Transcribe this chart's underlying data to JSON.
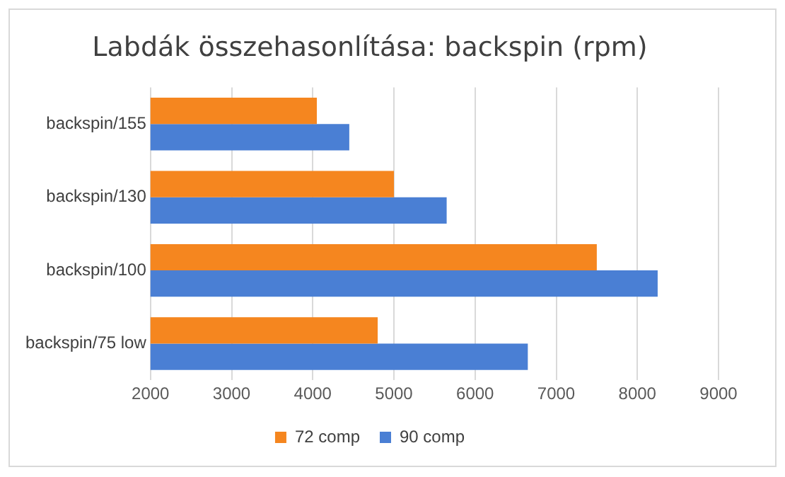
{
  "chart_data": {
    "type": "bar",
    "orientation": "horizontal",
    "title": "Labdák összehasonlítása: backspin (rpm)",
    "categories": [
      "backspin/155",
      "backspin/130",
      "backspin/100",
      "backspin/75 low"
    ],
    "series": [
      {
        "name": "72 comp",
        "color": "#f5861f",
        "values": [
          4050,
          5000,
          7500,
          4800
        ]
      },
      {
        "name": "90 comp",
        "color": "#4a7fd4",
        "values": [
          4450,
          5650,
          8250,
          6650
        ]
      }
    ],
    "xlim": [
      2000,
      9000
    ],
    "xticks": [
      2000,
      3000,
      4000,
      5000,
      6000,
      7000,
      8000,
      9000
    ],
    "grid": "x",
    "legend": "bottom"
  }
}
